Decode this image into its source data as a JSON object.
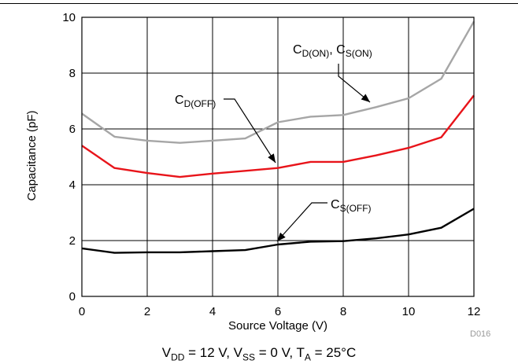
{
  "chart_data": {
    "type": "line",
    "xlabel": "Source Voltage (V)",
    "ylabel": "Capacitance (pF)",
    "xlim": [
      0,
      12
    ],
    "ylim": [
      0,
      10
    ],
    "xticks": [
      0,
      2,
      4,
      6,
      8,
      10,
      12
    ],
    "yticks": [
      0,
      2,
      4,
      6,
      8,
      10
    ],
    "grid": true,
    "series": [
      {
        "key": "cdon_son",
        "label_main": [
          "C",
          ", C"
        ],
        "label_sub": [
          "D(ON)",
          "S(ON)"
        ],
        "color": "#a6a6a6",
        "x": [
          0,
          1,
          2,
          3,
          4,
          5,
          6,
          7,
          8,
          9,
          10,
          11,
          12
        ],
        "y": [
          6.55,
          5.72,
          5.58,
          5.5,
          5.58,
          5.66,
          6.24,
          6.44,
          6.5,
          6.78,
          7.1,
          7.8,
          9.85
        ]
      },
      {
        "key": "cdoff",
        "label_main": [
          "C"
        ],
        "label_sub": [
          "D(OFF)"
        ],
        "color": "#e8141a",
        "x": [
          0,
          1,
          2,
          3,
          4,
          5,
          6,
          7,
          8,
          9,
          10,
          11,
          12
        ],
        "y": [
          5.4,
          4.6,
          4.42,
          4.28,
          4.4,
          4.5,
          4.6,
          4.82,
          4.82,
          5.05,
          5.32,
          5.7,
          7.2
        ]
      },
      {
        "key": "csoff",
        "label_main": [
          "C"
        ],
        "label_sub": [
          "S(OFF)"
        ],
        "color": "#000000",
        "x": [
          0,
          1,
          2,
          3,
          4,
          5,
          6,
          7,
          8,
          9,
          10,
          11,
          12
        ],
        "y": [
          1.72,
          1.56,
          1.58,
          1.58,
          1.62,
          1.66,
          1.86,
          1.96,
          1.98,
          2.08,
          2.22,
          2.46,
          3.14
        ]
      }
    ],
    "caption": {
      "parts": [
        "V",
        "DD",
        " = 12 V, V",
        "SS",
        " = 0 V, T",
        "A",
        " = 25°C"
      ]
    },
    "figure_code": "D016"
  }
}
